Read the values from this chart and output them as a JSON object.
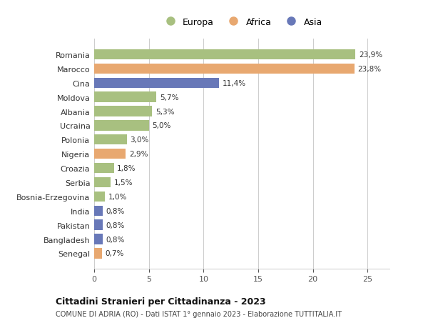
{
  "categories": [
    "Romania",
    "Marocco",
    "Cina",
    "Moldova",
    "Albania",
    "Ucraina",
    "Polonia",
    "Nigeria",
    "Croazia",
    "Serbia",
    "Bosnia-Erzegovina",
    "India",
    "Pakistan",
    "Bangladesh",
    "Senegal"
  ],
  "values": [
    23.9,
    23.8,
    11.4,
    5.7,
    5.3,
    5.0,
    3.0,
    2.9,
    1.8,
    1.5,
    1.0,
    0.8,
    0.8,
    0.8,
    0.7
  ],
  "labels": [
    "23,9%",
    "23,8%",
    "11,4%",
    "5,7%",
    "5,3%",
    "5,0%",
    "3,0%",
    "2,9%",
    "1,8%",
    "1,5%",
    "1,0%",
    "0,8%",
    "0,8%",
    "0,8%",
    "0,7%"
  ],
  "continents": [
    "Europa",
    "Africa",
    "Asia",
    "Europa",
    "Europa",
    "Europa",
    "Europa",
    "Africa",
    "Europa",
    "Europa",
    "Europa",
    "Asia",
    "Asia",
    "Asia",
    "Africa"
  ],
  "colors": {
    "Europa": "#a8c080",
    "Africa": "#e8a870",
    "Asia": "#6878b8"
  },
  "legend_labels": [
    "Europa",
    "Africa",
    "Asia"
  ],
  "legend_colors": [
    "#a8c080",
    "#e8a870",
    "#6878b8"
  ],
  "title": "Cittadini Stranieri per Cittadinanza - 2023",
  "subtitle": "COMUNE DI ADRIA (RO) - Dati ISTAT 1° gennaio 2023 - Elaborazione TUTTITALIA.IT",
  "xlim": [
    0,
    27
  ],
  "xticks": [
    0,
    5,
    10,
    15,
    20,
    25
  ],
  "background_color": "#ffffff",
  "bar_height": 0.72,
  "grid_color": "#cccccc"
}
